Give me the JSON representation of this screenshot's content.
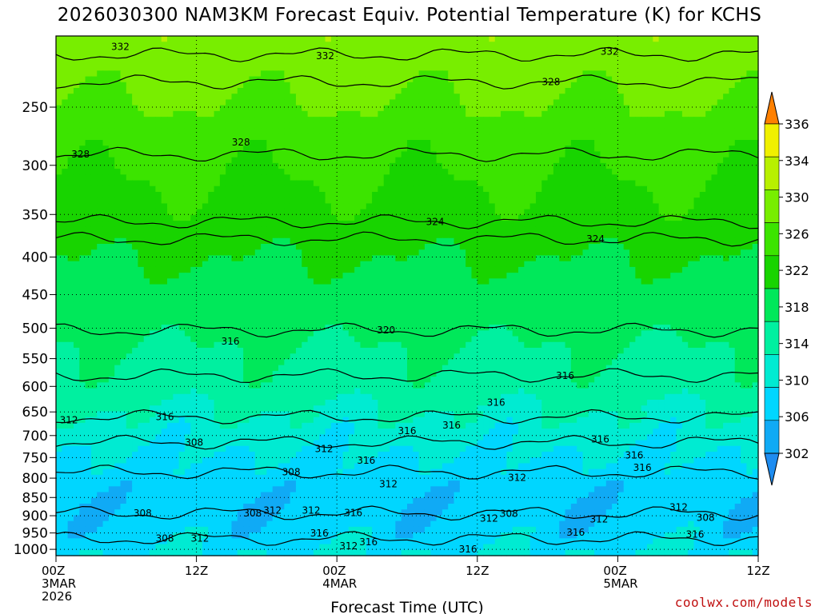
{
  "chart_data": {
    "type": "heatmap",
    "title": "2026030300 NAM3KM Forecast Equiv. Potential Temperature (K) for KCHS",
    "xlabel": "Forecast Time (UTC)",
    "ylabel": "",
    "x_ticks": [
      {
        "hour": 0,
        "label": "00Z",
        "sub": [
          "3MAR",
          "2026"
        ]
      },
      {
        "hour": 12,
        "label": "12Z",
        "sub": []
      },
      {
        "hour": 24,
        "label": "00Z",
        "sub": [
          "4MAR"
        ]
      },
      {
        "hour": 36,
        "label": "12Z",
        "sub": []
      },
      {
        "hour": 48,
        "label": "00Z",
        "sub": [
          "5MAR"
        ]
      },
      {
        "hour": 60,
        "label": "12Z",
        "sub": []
      }
    ],
    "xlim": [
      0,
      60
    ],
    "y_ticks": [
      250,
      300,
      350,
      400,
      450,
      500,
      550,
      600,
      650,
      700,
      750,
      800,
      850,
      900,
      950,
      1000
    ],
    "ylim": [
      1020,
      200
    ],
    "ylog": true,
    "colorbar": {
      "levels": [
        302,
        306,
        310,
        314,
        318,
        322,
        326,
        330,
        334,
        336
      ],
      "label_levels": [
        302,
        306,
        310,
        314,
        318,
        322,
        326,
        330,
        334,
        336
      ],
      "colors": [
        "#1e8cf0",
        "#10aaf5",
        "#00d6ff",
        "#00ebd2",
        "#00f0a0",
        "#00e85a",
        "#18d400",
        "#3ce400",
        "#78ee00",
        "#b8f000",
        "#f0f000",
        "#ff8000"
      ]
    },
    "contour_labels": [
      {
        "value": 332,
        "x": 5.5,
        "p": 207
      },
      {
        "value": 332,
        "x": 23.0,
        "p": 213
      },
      {
        "value": 332,
        "x": 47.3,
        "p": 210
      },
      {
        "value": 328,
        "x": 42.3,
        "p": 231
      },
      {
        "value": 328,
        "x": 2.1,
        "p": 290
      },
      {
        "value": 328,
        "x": 15.8,
        "p": 279
      },
      {
        "value": 324,
        "x": 32.4,
        "p": 358
      },
      {
        "value": 324,
        "x": 46.1,
        "p": 378
      },
      {
        "value": 320,
        "x": 28.2,
        "p": 503
      },
      {
        "value": 316,
        "x": 14.9,
        "p": 521
      },
      {
        "value": 316,
        "x": 43.5,
        "p": 580
      },
      {
        "value": 316,
        "x": 37.6,
        "p": 631
      },
      {
        "value": 316,
        "x": 9.3,
        "p": 660
      },
      {
        "value": 316,
        "x": 30.0,
        "p": 690
      },
      {
        "value": 316,
        "x": 33.8,
        "p": 678
      },
      {
        "value": 316,
        "x": 46.5,
        "p": 708
      },
      {
        "value": 316,
        "x": 49.4,
        "p": 745
      },
      {
        "value": 316,
        "x": 26.5,
        "p": 757
      },
      {
        "value": 316,
        "x": 50.1,
        "p": 774
      },
      {
        "value": 316,
        "x": 25.4,
        "p": 892
      },
      {
        "value": 316,
        "x": 22.5,
        "p": 951
      },
      {
        "value": 316,
        "x": 26.7,
        "p": 978
      },
      {
        "value": 316,
        "x": 44.4,
        "p": 948
      },
      {
        "value": 316,
        "x": 54.6,
        "p": 955
      },
      {
        "value": 316,
        "x": 35.2,
        "p": 1000
      },
      {
        "value": 312,
        "x": 1.1,
        "p": 667
      },
      {
        "value": 312,
        "x": 22.9,
        "p": 730
      },
      {
        "value": 312,
        "x": 28.4,
        "p": 815
      },
      {
        "value": 312,
        "x": 39.4,
        "p": 799
      },
      {
        "value": 312,
        "x": 21.8,
        "p": 885
      },
      {
        "value": 312,
        "x": 18.5,
        "p": 885
      },
      {
        "value": 312,
        "x": 37.0,
        "p": 908
      },
      {
        "value": 312,
        "x": 46.4,
        "p": 910
      },
      {
        "value": 312,
        "x": 53.2,
        "p": 877
      },
      {
        "value": 312,
        "x": 12.3,
        "p": 967
      },
      {
        "value": 312,
        "x": 25.0,
        "p": 990
      },
      {
        "value": 308,
        "x": 11.8,
        "p": 715
      },
      {
        "value": 308,
        "x": 20.1,
        "p": 785
      },
      {
        "value": 308,
        "x": 7.4,
        "p": 893
      },
      {
        "value": 308,
        "x": 16.8,
        "p": 893
      },
      {
        "value": 308,
        "x": 38.7,
        "p": 894
      },
      {
        "value": 308,
        "x": 55.5,
        "p": 905
      },
      {
        "value": 308,
        "x": 9.3,
        "p": 967
      }
    ]
  },
  "footer": {
    "credit": "coolwx.com/models"
  }
}
